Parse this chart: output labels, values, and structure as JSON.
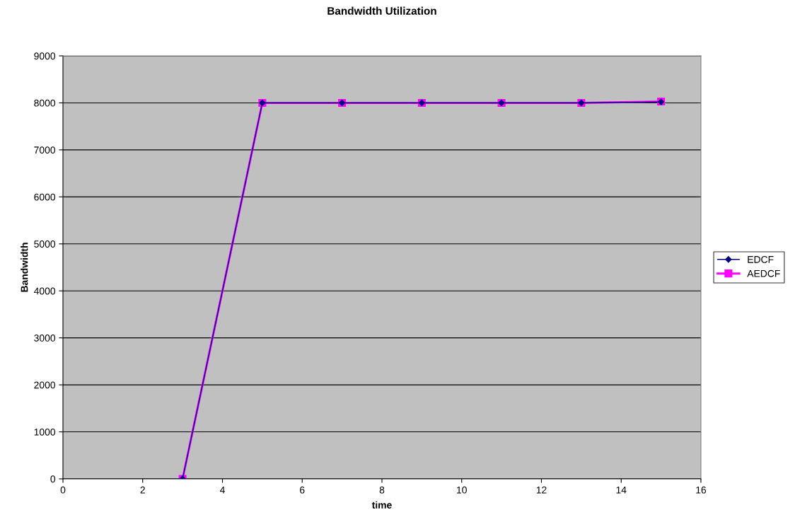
{
  "chart_data": {
    "type": "line",
    "title": "Bandwidth Utilization",
    "xlabel": "time",
    "ylabel": "Bandwidth",
    "x": [
      3,
      5,
      7,
      9,
      11,
      13,
      15
    ],
    "series": [
      {
        "name": "EDCF",
        "color": "#000080",
        "marker": "diamond",
        "values": [
          0,
          8000,
          8000,
          8000,
          8000,
          8000,
          8020
        ]
      },
      {
        "name": "AEDCF",
        "color": "#ff00ff",
        "marker": "square",
        "values": [
          0,
          8000,
          8000,
          8000,
          8000,
          8000,
          8030
        ]
      }
    ],
    "xlim": [
      0,
      16
    ],
    "xticks": [
      0,
      2,
      4,
      6,
      8,
      10,
      12,
      14,
      16
    ],
    "ylim": [
      0,
      9000
    ],
    "yticks": [
      0,
      1000,
      2000,
      3000,
      4000,
      5000,
      6000,
      7000,
      8000,
      9000
    ],
    "grid": "y",
    "legend": "right"
  }
}
